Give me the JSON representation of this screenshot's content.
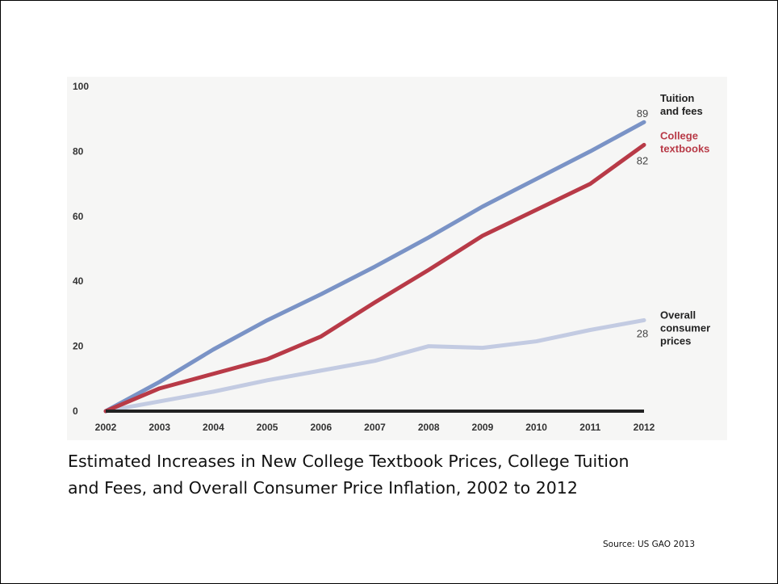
{
  "caption": {
    "line1": "Estimated Increases in New College Textbook Prices, College Tuition",
    "line2": "and Fees, and Overall Consumer Price Inflation, 2002 to 2012"
  },
  "source": "Source: US GAO 2013",
  "chart_data": {
    "type": "line",
    "title": "",
    "xlabel": "",
    "ylabel": "",
    "x": [
      2002,
      2003,
      2004,
      2005,
      2006,
      2007,
      2008,
      2009,
      2010,
      2011,
      2012
    ],
    "ylim": [
      0,
      100
    ],
    "yticks": [
      0,
      20,
      40,
      60,
      80,
      100
    ],
    "grid": false,
    "series": [
      {
        "name": "Tuition and fees",
        "label_lines": [
          "Tuition",
          "and fees"
        ],
        "end_label": "89",
        "color": "#7a93c6",
        "values": [
          0,
          9,
          19,
          28,
          36,
          44.5,
          53.5,
          63,
          71.5,
          80,
          89
        ]
      },
      {
        "name": "College textbooks",
        "label_lines": [
          "College",
          "textbooks"
        ],
        "end_label": "82",
        "color": "#b83a47",
        "values": [
          0,
          7,
          11.5,
          16,
          23,
          33.5,
          43.5,
          54,
          62,
          70,
          82
        ]
      },
      {
        "name": "Overall consumer prices",
        "label_lines": [
          "Overall",
          "consumer",
          "prices"
        ],
        "end_label": "28",
        "color": "#c3cbe2",
        "values": [
          0,
          3,
          6,
          9.5,
          12.5,
          15.5,
          20,
          19.5,
          21.5,
          25,
          28
        ]
      }
    ]
  }
}
